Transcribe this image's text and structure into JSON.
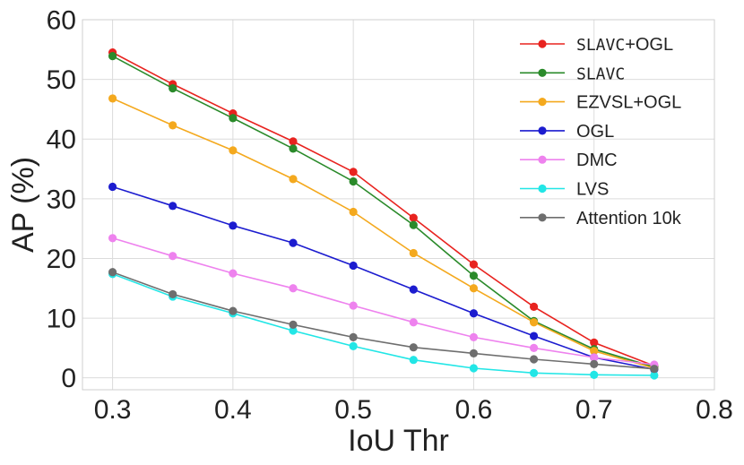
{
  "chart_data": {
    "type": "line",
    "title": "",
    "xlabel": "IoU Thr",
    "ylabel": "AP (%)",
    "xlim": [
      0.275,
      0.8
    ],
    "ylim": [
      -2,
      60
    ],
    "xticks": [
      "0.3",
      "0.4",
      "0.5",
      "0.6",
      "0.7",
      "0.8"
    ],
    "yticks": [
      "0",
      "10",
      "20",
      "30",
      "40",
      "50",
      "60"
    ],
    "grid": true,
    "legend_position": "top-right",
    "x": [
      0.3,
      0.35,
      0.4,
      0.45,
      0.5,
      0.55,
      0.6,
      0.65,
      0.7,
      0.75
    ],
    "series": [
      {
        "name": "SLAVC+OGL",
        "mono_part": "SLAVC",
        "rest": "+OGL",
        "color": "#e8231f",
        "values": [
          54.5,
          49.2,
          44.3,
          39.6,
          34.5,
          26.8,
          19.0,
          11.9,
          5.9,
          2.0
        ]
      },
      {
        "name": "SLAVC",
        "mono_part": "SLAVC",
        "rest": "",
        "color": "#2a8a2a",
        "values": [
          53.9,
          48.5,
          43.5,
          38.4,
          32.9,
          25.6,
          17.1,
          9.5,
          4.8,
          1.8
        ]
      },
      {
        "name": "EZVSL+OGL",
        "mono_part": "",
        "rest": "EZVSL+OGL",
        "color": "#f4a91e",
        "values": [
          46.8,
          42.3,
          38.1,
          33.3,
          27.8,
          20.9,
          15.0,
          9.3,
          4.5,
          1.6
        ]
      },
      {
        "name": "OGL",
        "mono_part": "",
        "rest": "OGL",
        "color": "#1c1ccf",
        "values": [
          32.0,
          28.8,
          25.5,
          22.6,
          18.8,
          14.8,
          10.8,
          7.0,
          3.4,
          1.4
        ]
      },
      {
        "name": "DMC",
        "mono_part": "",
        "rest": "DMC",
        "color": "#ee82ee",
        "values": [
          23.4,
          20.4,
          17.5,
          15.0,
          12.1,
          9.3,
          6.8,
          5.0,
          3.4,
          2.2
        ]
      },
      {
        "name": "LVS",
        "mono_part": "",
        "rest": "LVS",
        "color": "#22e6e6",
        "values": [
          17.4,
          13.6,
          10.8,
          7.9,
          5.3,
          3.0,
          1.6,
          0.8,
          0.5,
          0.4
        ]
      },
      {
        "name": "Attention 10k",
        "mono_part": "",
        "rest": "Attention 10k",
        "color": "#6e6e6e",
        "values": [
          17.7,
          14.0,
          11.2,
          8.9,
          6.8,
          5.1,
          4.1,
          3.1,
          2.3,
          1.5
        ]
      }
    ]
  }
}
